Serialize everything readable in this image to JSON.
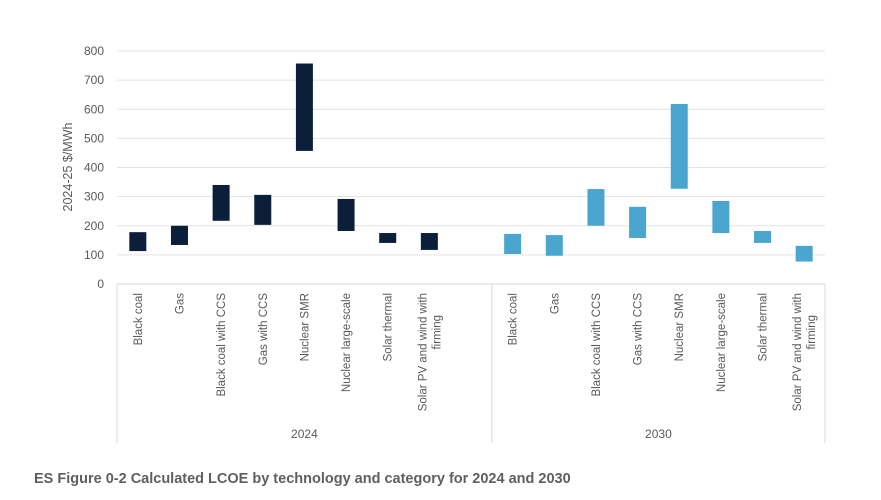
{
  "caption": "ES Figure 0-2 Calculated LCOE by technology and category for 2024 and 2030",
  "chart_data": {
    "type": "bar",
    "subtype": "floating-range",
    "title": "",
    "xlabel": "",
    "ylabel": "2024-25 $/MWh",
    "ylim": [
      0,
      800
    ],
    "yticks": [
      0,
      100,
      200,
      300,
      400,
      500,
      600,
      700,
      800
    ],
    "grid": true,
    "legend": "none",
    "groups": [
      {
        "name": "2024",
        "color": "#0c1f3a",
        "slots": 9,
        "categories": [
          "Black coal",
          "Gas",
          "Black coal with CCS",
          "Gas with CCS",
          "Nuclear SMR",
          "Nuclear large-scale",
          "Solar thermal",
          "Solar PV and wind with firming"
        ],
        "low": [
          113,
          134,
          217,
          203,
          457,
          182,
          141,
          117
        ],
        "high": [
          178,
          200,
          340,
          306,
          757,
          292,
          175,
          175
        ]
      },
      {
        "name": "2030",
        "color": "#4aa6cf",
        "slots": 8,
        "categories": [
          "Black coal",
          "Gas",
          "Black coal with CCS",
          "Gas with CCS",
          "Nuclear SMR",
          "Nuclear large-scale",
          "Solar thermal",
          "Solar PV and wind with firming"
        ],
        "low": [
          103,
          97,
          200,
          158,
          327,
          175,
          141,
          77
        ],
        "high": [
          172,
          168,
          326,
          265,
          618,
          285,
          182,
          131
        ]
      }
    ]
  }
}
